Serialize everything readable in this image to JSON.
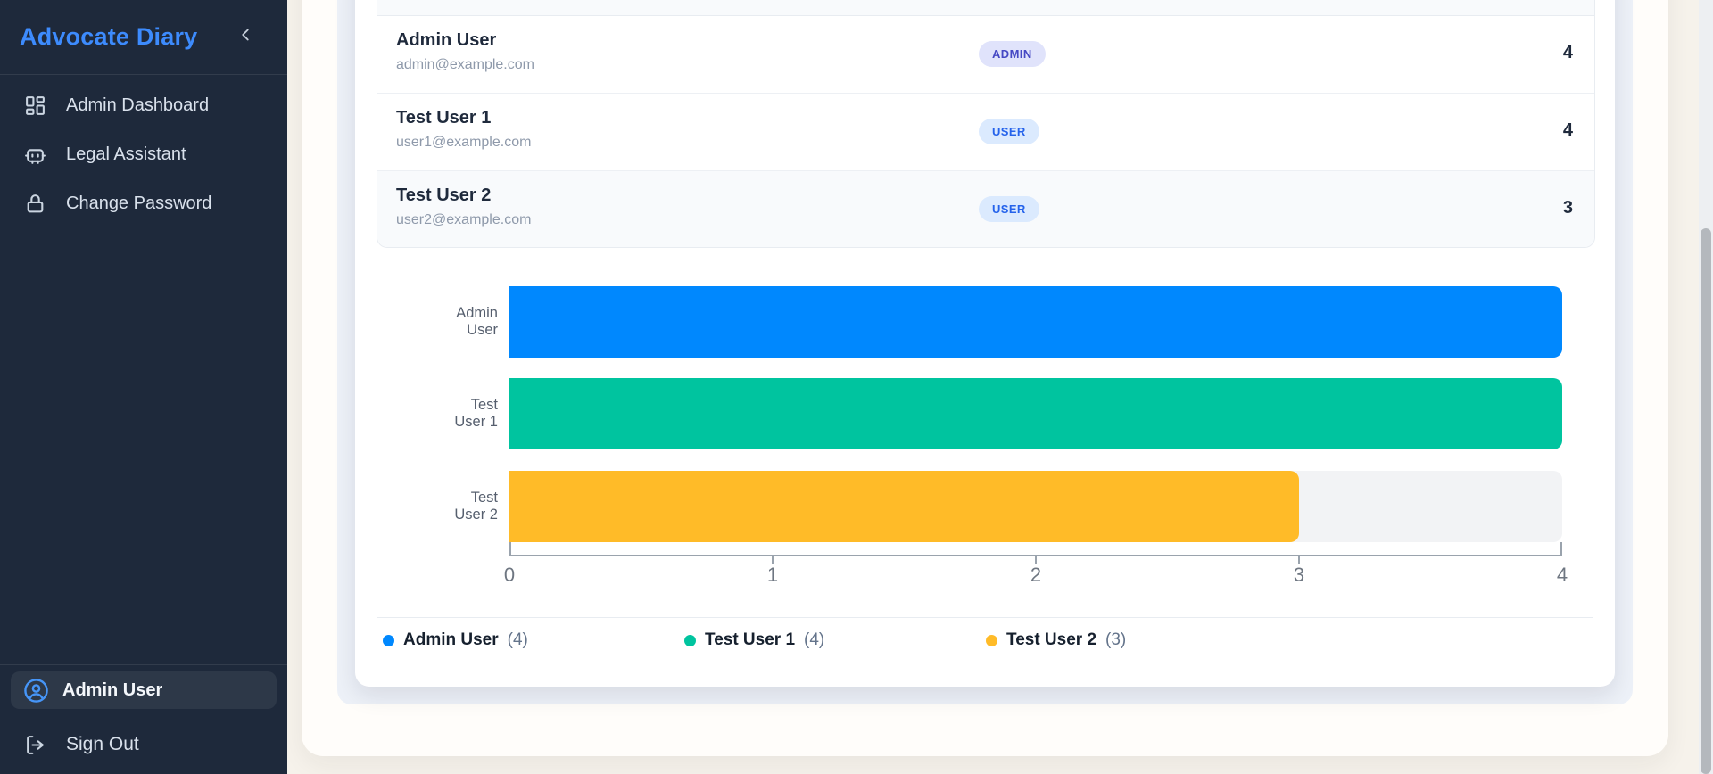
{
  "app_title": "Advocate Diary",
  "sidebar": {
    "logo": "Advocate Diary",
    "collapse_icon": "chevron-left",
    "nav": [
      {
        "id": "admin-dashboard",
        "label": "Admin Dashboard",
        "icon": "dashboard-grid"
      },
      {
        "id": "legal-assistant",
        "label": "Legal Assistant",
        "icon": "robot"
      },
      {
        "id": "change-password",
        "label": "Change Password",
        "icon": "lock"
      }
    ],
    "user": {
      "label": "Admin User",
      "icon": "user-circle"
    },
    "signout": {
      "label": "Sign Out",
      "icon": "logout"
    }
  },
  "users_table": {
    "rows": [
      {
        "name": "Admin User",
        "email": "admin@example.com",
        "role": "ADMIN",
        "count": "4",
        "highlight": false
      },
      {
        "name": "Test User 1",
        "email": "user1@example.com",
        "role": "USER",
        "count": "4",
        "highlight": false
      },
      {
        "name": "Test User 2",
        "email": "user2@example.com",
        "role": "USER",
        "count": "3",
        "highlight": true
      }
    ],
    "badge_styles": {
      "ADMIN": {
        "bg": "#e0e3fb",
        "fg": "#4649c4"
      },
      "USER": {
        "bg": "#dbeafe",
        "fg": "#2563eb"
      }
    }
  },
  "chart_data": {
    "type": "bar",
    "orientation": "horizontal",
    "categories": [
      "Admin User",
      "Test User 1",
      "Test User 2"
    ],
    "values": [
      4,
      4,
      3
    ],
    "bar_colors": [
      "#0088FE",
      "#00C49F",
      "#FFBB28"
    ],
    "track_color": "#f2f3f5",
    "xlim": [
      0,
      4
    ],
    "x_ticks": [
      0,
      1,
      2,
      3,
      4
    ],
    "grid": false,
    "legend_position": "bottom",
    "legend": [
      {
        "label": "Admin User",
        "count": "4",
        "color": "#0088FE"
      },
      {
        "label": "Test User 1",
        "count": "4",
        "color": "#00C49F"
      },
      {
        "label": "Test User 2",
        "count": "3",
        "color": "#FFBB28"
      }
    ]
  },
  "colors": {
    "sidebar_bg": "#1e293b",
    "accent_blue": "#3d8bfd",
    "body_bg": "#f6f2eb",
    "panel_bg": "#edf1f8"
  }
}
